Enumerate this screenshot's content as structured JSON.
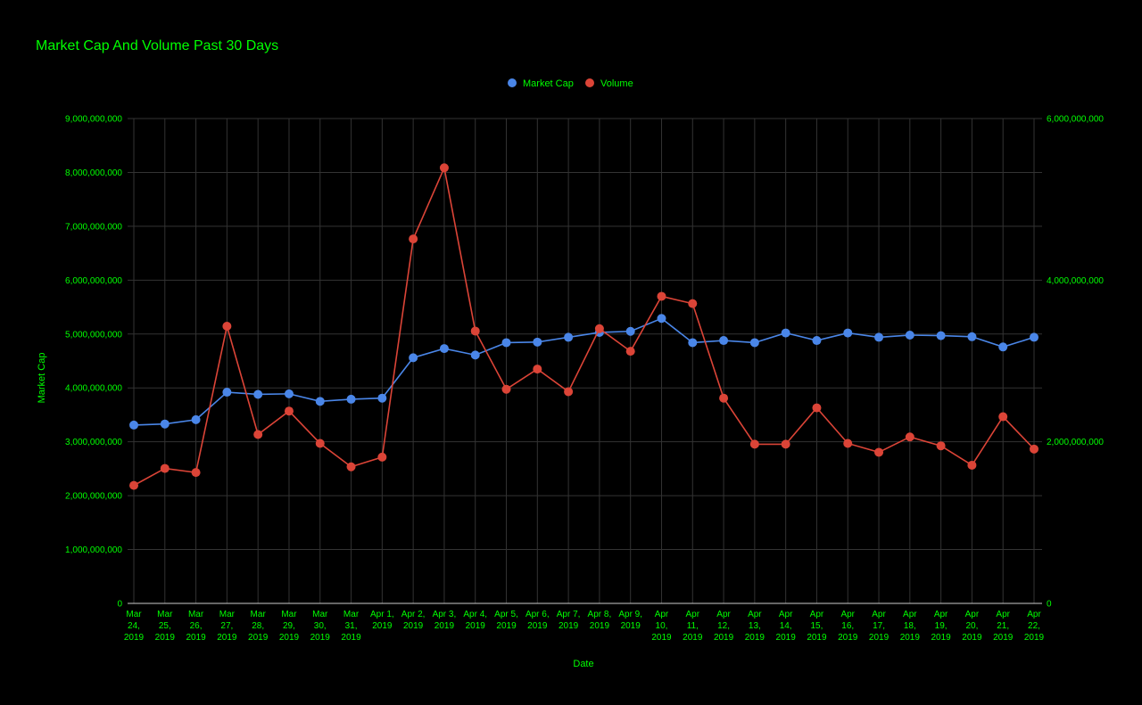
{
  "colors": {
    "background": "#000000",
    "text": "#00ff00",
    "grid": "#333333",
    "market_cap": "#4a86e8",
    "volume": "#db4437"
  },
  "chart_data": {
    "type": "line",
    "title": "Market Cap And Volume Past 30 Days",
    "xlabel": "Date",
    "ylabel": "Market Cap",
    "y2label": "",
    "legend_position": "top",
    "grid": true,
    "categories": [
      "Mar 24, 2019",
      "Mar 25, 2019",
      "Mar 26, 2019",
      "Mar 27, 2019",
      "Mar 28, 2019",
      "Mar 29, 2019",
      "Mar 30, 2019",
      "Mar 31, 2019",
      "Apr 1, 2019",
      "Apr 2, 2019",
      "Apr 3, 2019",
      "Apr 4, 2019",
      "Apr 5, 2019",
      "Apr 6, 2019",
      "Apr 7, 2019",
      "Apr 8, 2019",
      "Apr 9, 2019",
      "Apr 10, 2019",
      "Apr 11, 2019",
      "Apr 12, 2019",
      "Apr 13, 2019",
      "Apr 14, 2019",
      "Apr 15, 2019",
      "Apr 16, 2019",
      "Apr 17, 2019",
      "Apr 18, 2019",
      "Apr 19, 2019",
      "Apr 20, 2019",
      "Apr 21, 2019",
      "Apr 22, 2019"
    ],
    "tick_label_lines": [
      [
        "Mar",
        "24,",
        "2019"
      ],
      [
        "Mar",
        "25,",
        "2019"
      ],
      [
        "Mar",
        "26,",
        "2019"
      ],
      [
        "Mar",
        "27,",
        "2019"
      ],
      [
        "Mar",
        "28,",
        "2019"
      ],
      [
        "Mar",
        "29,",
        "2019"
      ],
      [
        "Mar",
        "30,",
        "2019"
      ],
      [
        "Mar",
        "31,",
        "2019"
      ],
      [
        "Apr 1,",
        "2019"
      ],
      [
        "Apr 2,",
        "2019"
      ],
      [
        "Apr 3,",
        "2019"
      ],
      [
        "Apr 4,",
        "2019"
      ],
      [
        "Apr 5,",
        "2019"
      ],
      [
        "Apr 6,",
        "2019"
      ],
      [
        "Apr 7,",
        "2019"
      ],
      [
        "Apr 8,",
        "2019"
      ],
      [
        "Apr 9,",
        "2019"
      ],
      [
        "Apr",
        "10,",
        "2019"
      ],
      [
        "Apr",
        "11,",
        "2019"
      ],
      [
        "Apr",
        "12,",
        "2019"
      ],
      [
        "Apr",
        "13,",
        "2019"
      ],
      [
        "Apr",
        "14,",
        "2019"
      ],
      [
        "Apr",
        "15,",
        "2019"
      ],
      [
        "Apr",
        "16,",
        "2019"
      ],
      [
        "Apr",
        "17,",
        "2019"
      ],
      [
        "Apr",
        "18,",
        "2019"
      ],
      [
        "Apr",
        "19,",
        "2019"
      ],
      [
        "Apr",
        "20,",
        "2019"
      ],
      [
        "Apr",
        "21,",
        "2019"
      ],
      [
        "Apr",
        "22,",
        "2019"
      ]
    ],
    "ylim": [
      0,
      9000000000
    ],
    "y_ticks": [
      0,
      1000000000,
      2000000000,
      3000000000,
      4000000000,
      5000000000,
      6000000000,
      7000000000,
      8000000000,
      9000000000
    ],
    "y_tick_labels": [
      "0",
      "1,000,000,000",
      "2,000,000,000",
      "3,000,000,000",
      "4,000,000,000",
      "5,000,000,000",
      "6,000,000,000",
      "7,000,000,000",
      "8,000,000,000",
      "9,000,000,000"
    ],
    "y2lim": [
      0,
      6000000000
    ],
    "y2_ticks": [
      0,
      2000000000,
      4000000000,
      6000000000
    ],
    "y2_tick_labels": [
      "0",
      "2,000,000,000",
      "4,000,000,000",
      "6,000,000,000"
    ],
    "series": [
      {
        "name": "Market Cap",
        "axis": "left",
        "color": "#4a86e8",
        "values": [
          3310000000,
          3330000000,
          3410000000,
          3920000000,
          3880000000,
          3890000000,
          3750000000,
          3790000000,
          3810000000,
          4560000000,
          4730000000,
          4610000000,
          4840000000,
          4850000000,
          4940000000,
          5030000000,
          5050000000,
          5290000000,
          4840000000,
          4880000000,
          4840000000,
          5020000000,
          4880000000,
          5020000000,
          4940000000,
          4980000000,
          4970000000,
          4950000000,
          4760000000,
          4940000000
        ]
      },
      {
        "name": "Volume",
        "axis": "right",
        "color": "#db4437",
        "values": [
          1460000000,
          1670000000,
          1620000000,
          3430000000,
          2090000000,
          2380000000,
          1980000000,
          1690000000,
          1810000000,
          4510000000,
          5390000000,
          3370000000,
          2650000000,
          2900000000,
          2620000000,
          3400000000,
          3120000000,
          3800000000,
          3710000000,
          2540000000,
          1970000000,
          1970000000,
          2420000000,
          1980000000,
          1870000000,
          2060000000,
          1950000000,
          1710000000,
          2310000000,
          1910000000
        ]
      }
    ]
  }
}
